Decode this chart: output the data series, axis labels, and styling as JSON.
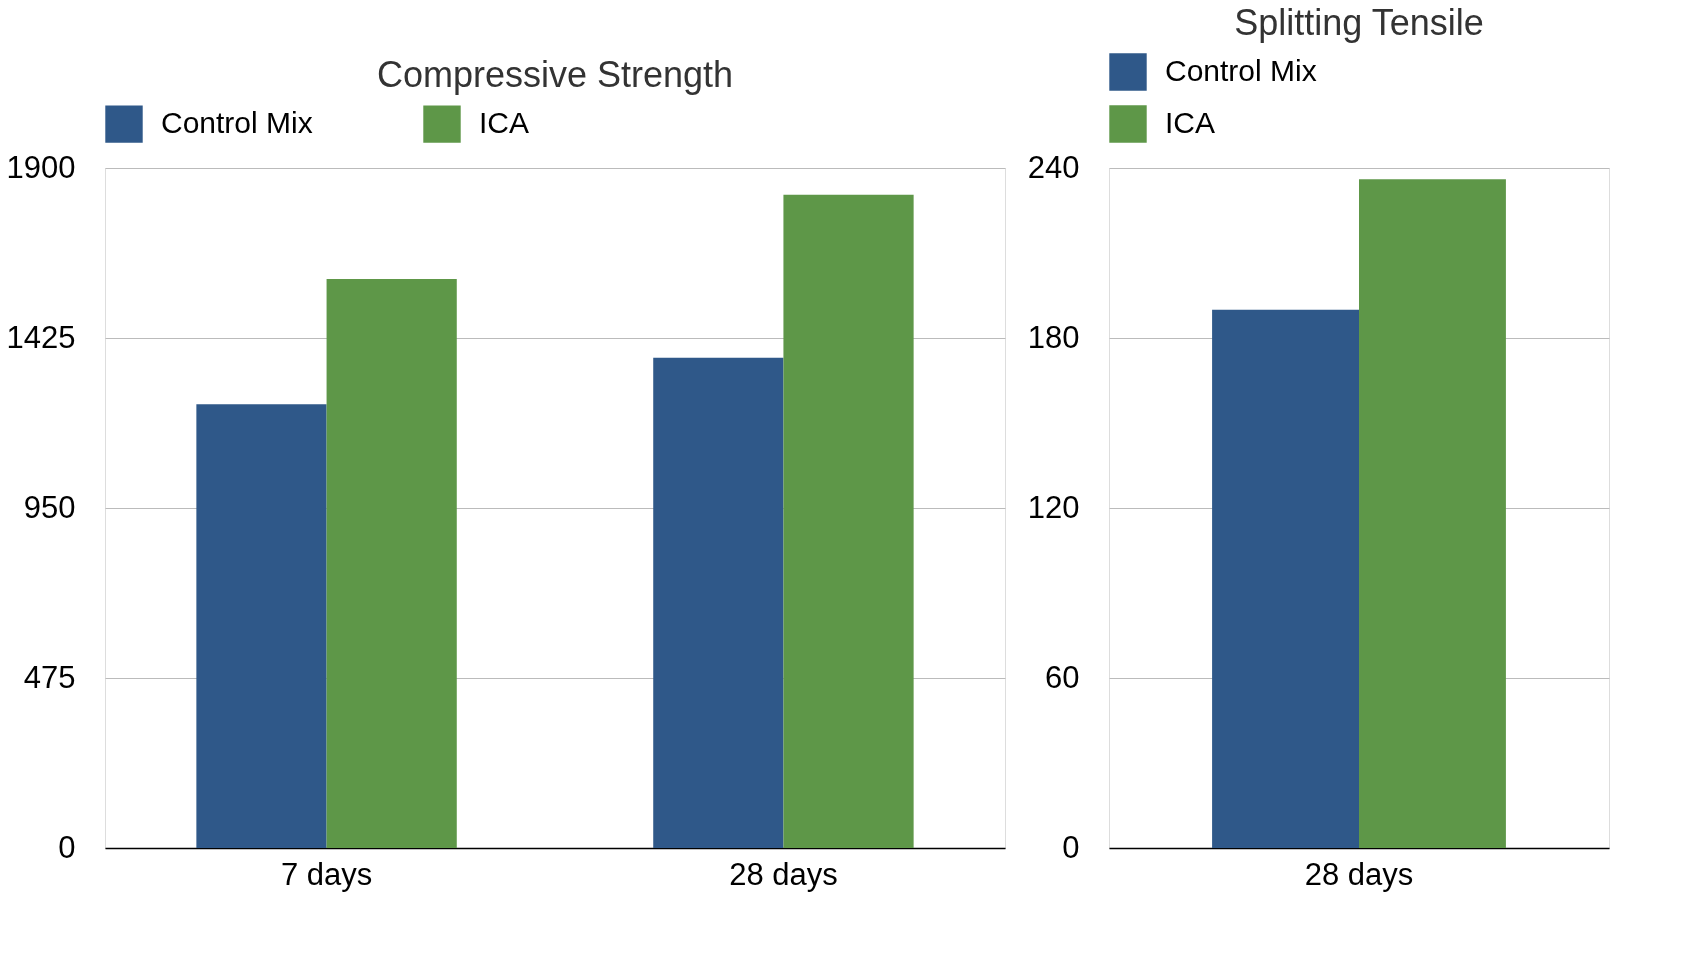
{
  "chart_data": [
    {
      "type": "bar",
      "title": "Compressive Strength",
      "categories": [
        "7 days",
        "28 days"
      ],
      "series": [
        {
          "name": "Control Mix",
          "color": "#2f5889",
          "values": [
            1240,
            1370
          ]
        },
        {
          "name": "ICA",
          "color": "#5e9748",
          "values": [
            1590,
            1825
          ]
        }
      ],
      "ylim": [
        0,
        1900
      ],
      "yticks": [
        0,
        475,
        950,
        1425,
        1900
      ],
      "grid": "y",
      "legend": "top"
    },
    {
      "type": "bar",
      "title": "Splitting Tensile",
      "categories": [
        "28 days"
      ],
      "series": [
        {
          "name": "Control Mix",
          "color": "#2f5889",
          "values": [
            190
          ]
        },
        {
          "name": "ICA",
          "color": "#5e9748",
          "values": [
            236
          ]
        }
      ],
      "ylim": [
        0,
        240
      ],
      "yticks": [
        0,
        60,
        120,
        180,
        240
      ],
      "grid": "y",
      "legend": "top"
    }
  ]
}
